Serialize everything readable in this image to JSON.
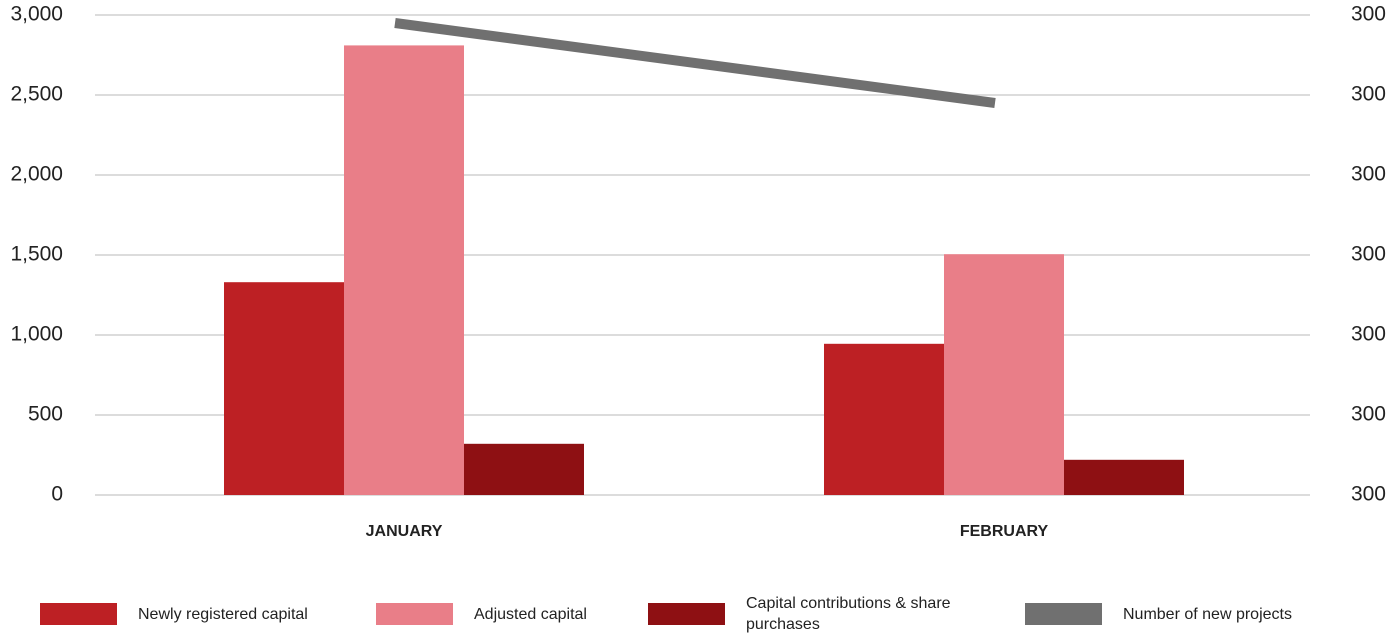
{
  "chart_data": {
    "type": "bar",
    "categories": [
      "JANUARY",
      "FEBRUARY"
    ],
    "series": [
      {
        "name": "Newly registered capital",
        "color": "#bd2024",
        "values": [
          1330,
          945
        ]
      },
      {
        "name": "Adjusted capital",
        "color": "#e97e88",
        "values": [
          2810,
          1505
        ]
      },
      {
        "name": "Capital contributions & share purchases",
        "color": "#8e1013",
        "values": [
          320,
          220
        ]
      },
      {
        "name": "Number of new projects",
        "color": "#707070",
        "type": "line",
        "axis": "y2",
        "values": [
          300.29,
          300.19
        ]
      }
    ],
    "ylim": [
      0,
      3000
    ],
    "yticks": [
      0,
      {
        "value": 500,
        "label": "500"
      },
      {
        "value": 1000,
        "label": "1,000"
      },
      {
        "value": 1500,
        "label": "1,500"
      },
      {
        "value": 2000,
        "label": "2,000"
      },
      {
        "value": 2500,
        "label": "2,500"
      },
      {
        "value": 3000,
        "label": "3,000"
      }
    ],
    "y2lim": [
      299.7,
      300.3
    ],
    "y2ticks": [
      {
        "value": 299.7,
        "label": "300"
      },
      {
        "value": 299.8,
        "label": "300"
      },
      {
        "value": 299.9,
        "label": "300"
      },
      {
        "value": 300.0,
        "label": "300"
      },
      {
        "value": 300.1,
        "label": "300"
      },
      {
        "value": 300.2,
        "label": "300"
      },
      {
        "value": 300.3,
        "label": "300"
      }
    ],
    "grid": true,
    "legend": "bottom"
  }
}
